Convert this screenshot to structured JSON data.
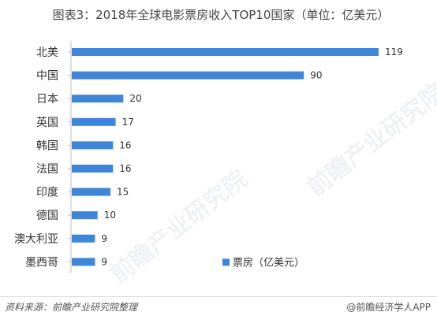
{
  "title": "图表3：2018年全球电影票房收入TOP10国家（单位：亿美元）",
  "watermark": "前瞻产业研究院",
  "footer": {
    "source": "资料来源：前瞻产业研究院整理",
    "brand": "@前瞻经济学人APP"
  },
  "colors": {
    "bar": "#3f86d8",
    "axis": "#bfbfbf",
    "text": "#333333"
  },
  "chart_data": {
    "type": "bar",
    "orientation": "horizontal",
    "title": "图表3：2018年全球电影票房收入TOP10国家（单位：亿美元）",
    "categories": [
      "北美",
      "中国",
      "日本",
      "英国",
      "韩国",
      "法国",
      "印度",
      "德国",
      "澳大利亚",
      "墨西哥"
    ],
    "series": [
      {
        "name": "票房（亿美元）",
        "values": [
          119,
          90,
          20,
          17,
          16,
          16,
          15,
          10,
          9,
          9
        ]
      }
    ],
    "xlim": [
      0,
      119
    ],
    "grid": false,
    "legend": "bottom-right",
    "data_labels": true
  }
}
